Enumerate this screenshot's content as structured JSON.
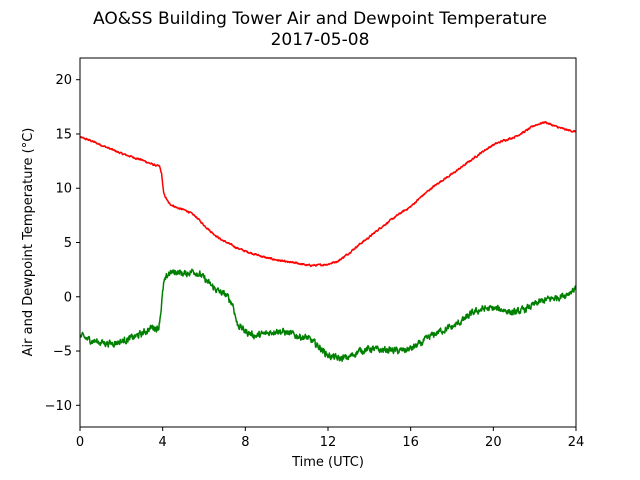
{
  "chart_data": {
    "type": "line",
    "title": "AO&SS Building Tower Air and Dewpoint Temperature",
    "subtitle": "2017-05-08",
    "xlabel": "Time (UTC)",
    "ylabel": "Air and Dewpoint Temperature (°C)",
    "xlim": [
      0,
      24
    ],
    "ylim": [
      -12,
      22
    ],
    "xticks": [
      0,
      4,
      8,
      12,
      16,
      20,
      24
    ],
    "yticks": [
      -10,
      -5,
      0,
      5,
      10,
      15,
      20
    ],
    "xtick_labels": [
      "0",
      "4",
      "8",
      "12",
      "16",
      "20",
      "24"
    ],
    "ytick_labels": [
      "−10",
      "−5",
      "0",
      "5",
      "10",
      "15",
      "20"
    ],
    "grid": false,
    "series": [
      {
        "color": "#ff0000",
        "noise": 0.15,
        "points": [
          [
            0,
            14.7
          ],
          [
            0.5,
            14.4
          ],
          [
            1,
            14.0
          ],
          [
            1.5,
            13.6
          ],
          [
            2,
            13.2
          ],
          [
            2.5,
            12.9
          ],
          [
            3,
            12.6
          ],
          [
            3.5,
            12.2
          ],
          [
            3.85,
            12.0
          ],
          [
            3.95,
            11.3
          ],
          [
            4.05,
            9.5
          ],
          [
            4.3,
            8.6
          ],
          [
            4.7,
            8.2
          ],
          [
            5.2,
            7.9
          ],
          [
            5.6,
            7.4
          ],
          [
            6,
            6.6
          ],
          [
            6.4,
            5.9
          ],
          [
            6.8,
            5.3
          ],
          [
            7.2,
            4.9
          ],
          [
            7.6,
            4.5
          ],
          [
            8,
            4.2
          ],
          [
            8.5,
            3.9
          ],
          [
            9,
            3.6
          ],
          [
            9.5,
            3.4
          ],
          [
            10,
            3.2
          ],
          [
            10.5,
            3.1
          ],
          [
            11,
            2.9
          ],
          [
            11.5,
            2.9
          ],
          [
            12,
            3.0
          ],
          [
            12.5,
            3.3
          ],
          [
            13,
            4.0
          ],
          [
            13.5,
            4.8
          ],
          [
            14,
            5.5
          ],
          [
            14.5,
            6.3
          ],
          [
            15,
            7.0
          ],
          [
            15.5,
            7.7
          ],
          [
            16,
            8.3
          ],
          [
            16.5,
            9.2
          ],
          [
            17,
            10.0
          ],
          [
            17.5,
            10.7
          ],
          [
            18,
            11.3
          ],
          [
            18.5,
            12.0
          ],
          [
            19,
            12.7
          ],
          [
            19.5,
            13.4
          ],
          [
            20,
            14.0
          ],
          [
            20.5,
            14.4
          ],
          [
            21,
            14.7
          ],
          [
            21.5,
            15.2
          ],
          [
            22,
            15.8
          ],
          [
            22.5,
            16.1
          ],
          [
            23,
            15.7
          ],
          [
            23.5,
            15.4
          ],
          [
            24,
            15.2
          ]
        ]
      },
      {
        "color": "#008000",
        "noise": 0.55,
        "points": [
          [
            0,
            -3.6
          ],
          [
            0.5,
            -4.0
          ],
          [
            1,
            -4.2
          ],
          [
            1.5,
            -4.3
          ],
          [
            2,
            -4.1
          ],
          [
            2.5,
            -3.8
          ],
          [
            3,
            -3.4
          ],
          [
            3.5,
            -2.8
          ],
          [
            3.8,
            -2.9
          ],
          [
            3.9,
            -1.5
          ],
          [
            4.05,
            1.2
          ],
          [
            4.3,
            2.2
          ],
          [
            4.7,
            2.3
          ],
          [
            5.1,
            2.1
          ],
          [
            5.5,
            2.4
          ],
          [
            5.9,
            1.9
          ],
          [
            6.3,
            1.1
          ],
          [
            6.7,
            0.5
          ],
          [
            7.1,
            0.1
          ],
          [
            7.4,
            -0.7
          ],
          [
            7.6,
            -2.5
          ],
          [
            8,
            -3.2
          ],
          [
            8.5,
            -3.6
          ],
          [
            9,
            -3.4
          ],
          [
            9.5,
            -3.1
          ],
          [
            10,
            -3.3
          ],
          [
            10.5,
            -3.6
          ],
          [
            11,
            -3.8
          ],
          [
            11.5,
            -4.5
          ],
          [
            12,
            -5.4
          ],
          [
            12.5,
            -5.7
          ],
          [
            13,
            -5.6
          ],
          [
            13.5,
            -5.0
          ],
          [
            14,
            -4.8
          ],
          [
            14.5,
            -4.9
          ],
          [
            15,
            -4.9
          ],
          [
            15.5,
            -5.0
          ],
          [
            16,
            -4.8
          ],
          [
            16.5,
            -4.3
          ],
          [
            17,
            -3.6
          ],
          [
            17.5,
            -3.1
          ],
          [
            18,
            -2.8
          ],
          [
            18.5,
            -2.2
          ],
          [
            19,
            -1.5
          ],
          [
            19.5,
            -1.1
          ],
          [
            20,
            -1.1
          ],
          [
            20.5,
            -1.2
          ],
          [
            21,
            -1.5
          ],
          [
            21.5,
            -1.2
          ],
          [
            22,
            -0.7
          ],
          [
            22.5,
            -0.3
          ],
          [
            23,
            -0.1
          ],
          [
            23.5,
            0.2
          ],
          [
            24,
            0.8
          ]
        ]
      }
    ]
  }
}
